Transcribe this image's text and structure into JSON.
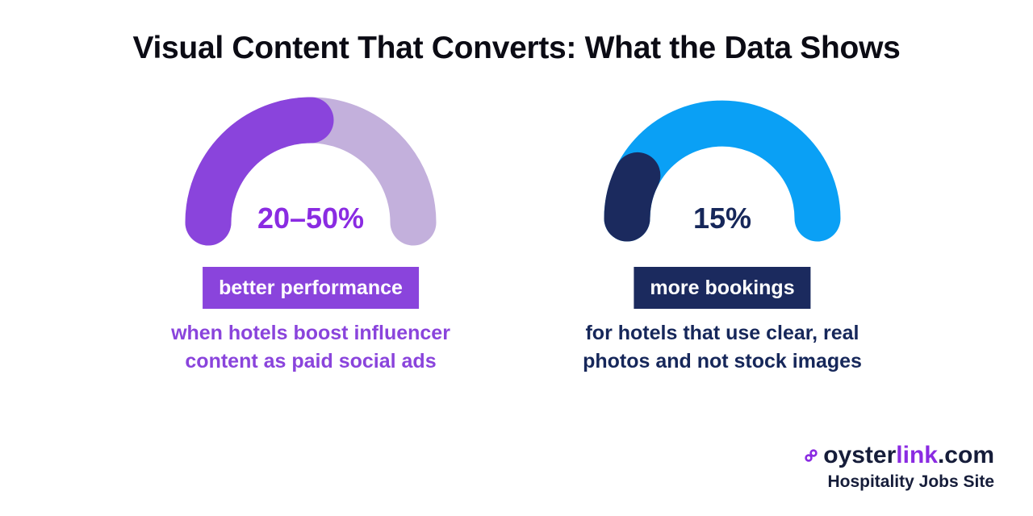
{
  "title": "Visual Content That Converts: What the Data Shows",
  "colors": {
    "purple_fill": "#8a44dc",
    "purple_track": "#c3b0dc",
    "purple_text": "#8a2be2",
    "blue_track": "#0aa0f5",
    "navy_fill": "#1b2a5e",
    "navy_text": "#16275a",
    "purple_desc": "#8a44dc"
  },
  "chart_data": [
    {
      "type": "gauge",
      "value_label": "20–50%",
      "range": [
        20,
        50
      ],
      "max": 100,
      "label": "better performance",
      "description": "when hotels boost influencer content as paid social ads"
    },
    {
      "type": "gauge",
      "value_label": "15%",
      "value": 15,
      "max": 100,
      "label": "more bookings",
      "description": "for hotels that use clear, real photos and not stock images"
    }
  ],
  "brand": {
    "name_prefix": "oyster",
    "name_accent": "link",
    "name_suffix": ".com",
    "tagline": "Hospitality Jobs Site"
  }
}
